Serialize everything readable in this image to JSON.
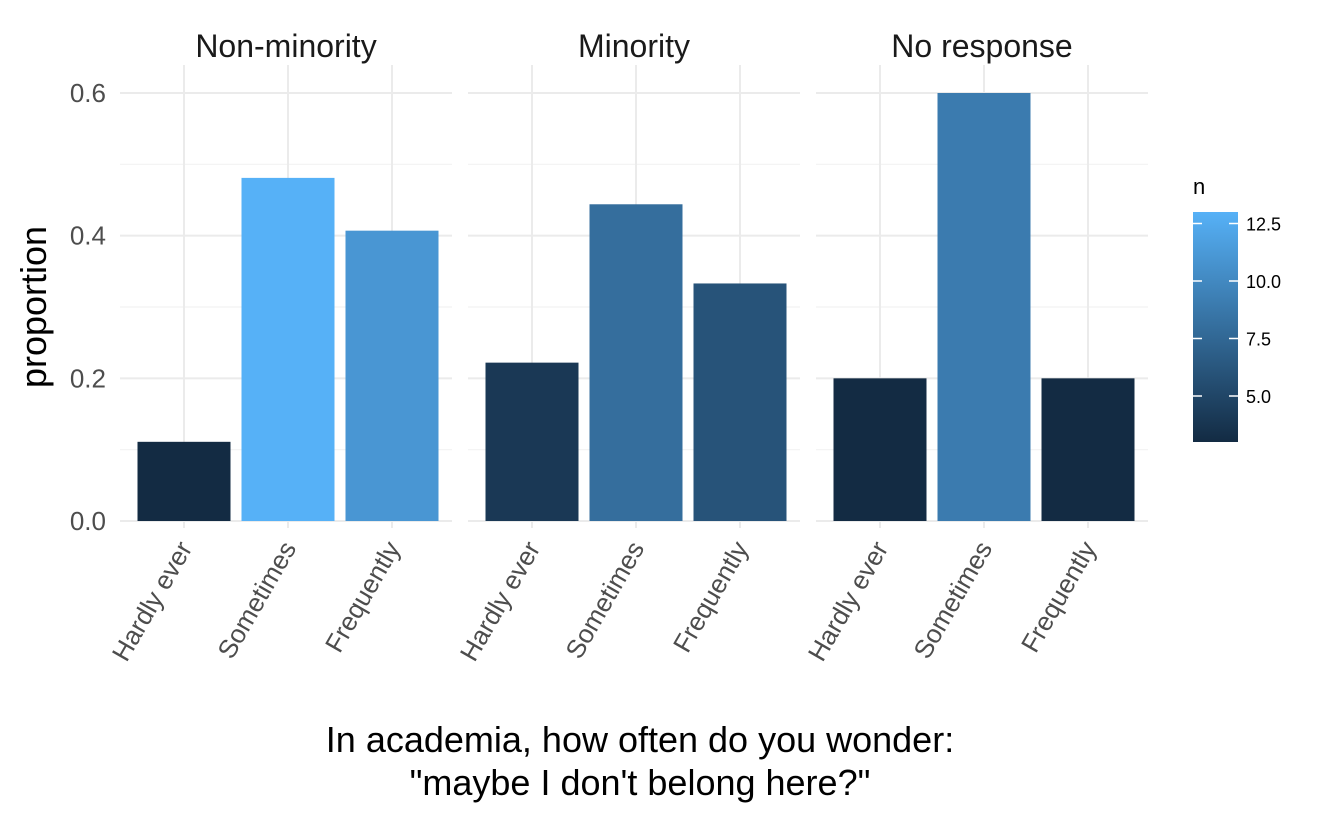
{
  "chart_data": {
    "type": "bar",
    "facet_by": "group",
    "panels": [
      {
        "label": "Non-minority",
        "categories": [
          "Hardly ever",
          "Sometimes",
          "Frequently"
        ],
        "proportion": [
          0.111,
          0.481,
          0.407
        ],
        "n": [
          3,
          13,
          11
        ]
      },
      {
        "label": "Minority",
        "categories": [
          "Hardly ever",
          "Sometimes",
          "Frequently"
        ],
        "proportion": [
          0.222,
          0.444,
          0.333
        ],
        "n": [
          4,
          8,
          6
        ]
      },
      {
        "label": "No response",
        "categories": [
          "Hardly ever",
          "Sometimes",
          "Frequently"
        ],
        "proportion": [
          0.2,
          0.6,
          0.2
        ],
        "n": [
          3,
          9,
          3
        ]
      }
    ],
    "ylabel": "proportion",
    "xlabel_lines": [
      "In academia, how often do you wonder:",
      "\"maybe I don't belong here?\""
    ],
    "ylim": [
      0,
      0.6
    ],
    "y_ticks": [
      0.0,
      0.2,
      0.4,
      0.6
    ],
    "y_tick_labels": [
      "0.0",
      "0.2",
      "0.4",
      "0.6"
    ],
    "grid": true,
    "legend": {
      "title": "n",
      "placement": "right",
      "range": [
        3,
        13
      ],
      "ticks": [
        5.0,
        7.5,
        10.0,
        12.5
      ],
      "tick_labels": [
        "5.0",
        "7.5",
        "10.0",
        "12.5"
      ],
      "color_low": "#132b43",
      "color_high": "#56b1f7"
    }
  }
}
